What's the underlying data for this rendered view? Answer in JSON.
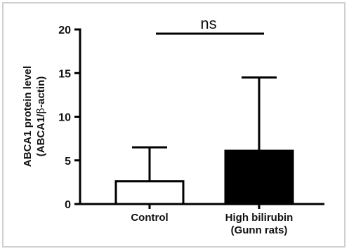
{
  "chart_data": {
    "type": "bar",
    "ylabel": {
      "line1": "ABCA1 protein level",
      "line2_prefix": "(ABCA1/",
      "line2_symbol": "β",
      "line2_suffix": "-actin)"
    },
    "ylim": [
      0,
      20
    ],
    "yticks": [
      0,
      5,
      10,
      15,
      20
    ],
    "categories": [
      {
        "lines": [
          "Control"
        ]
      },
      {
        "lines": [
          "High bilirubin",
          "(Gunn rats)"
        ]
      }
    ],
    "values": [
      2.6,
      6.1
    ],
    "errors": [
      3.9,
      8.4
    ],
    "fills": [
      "#ffffff",
      "#000000"
    ],
    "significance": {
      "label": "ns"
    },
    "grid": false
  }
}
